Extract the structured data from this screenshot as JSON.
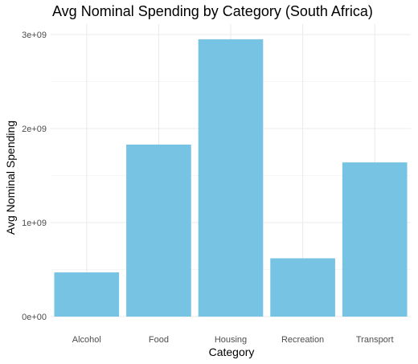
{
  "chart_data": {
    "type": "bar",
    "title": "Avg Nominal Spending by Category (South Africa)",
    "xlabel": "Category",
    "ylabel": "Avg Nominal Spending",
    "categories": [
      "Alcohol",
      "Food",
      "Housing",
      "Recreation",
      "Transport"
    ],
    "values": [
      470000000,
      1830000000,
      2950000000,
      620000000,
      1640000000
    ],
    "ylim": [
      0,
      3000000000
    ],
    "yticks": [
      0,
      1000000000,
      2000000000,
      3000000000
    ],
    "ytick_labels": [
      "0e+00",
      "1e+09",
      "2e+09",
      "3e+09"
    ],
    "bar_color": "#77c3e4",
    "grid": true
  }
}
